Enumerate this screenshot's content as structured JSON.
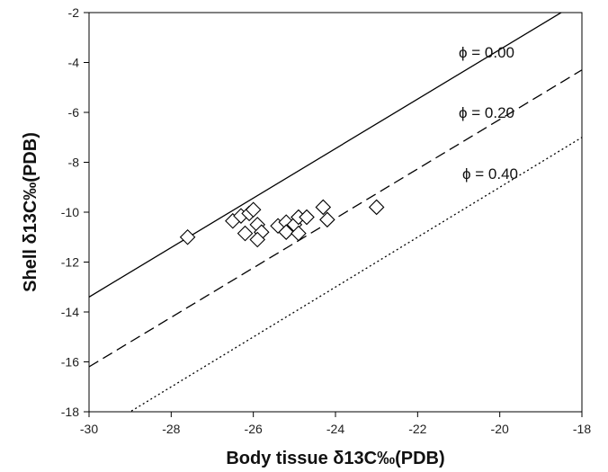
{
  "chart_data": {
    "type": "scatter",
    "title": "",
    "xlabel": "Body tissue δ13C‰(PDB)",
    "ylabel": "Shell δ13C‰(PDB)",
    "xlim": [
      -30,
      -18
    ],
    "ylim": [
      -18,
      -2
    ],
    "xticks": [
      -30,
      -28,
      -26,
      -24,
      -22,
      -20,
      -18
    ],
    "yticks": [
      -18,
      -16,
      -14,
      -12,
      -10,
      -8,
      -6,
      -4,
      -2
    ],
    "xtick_labels": [
      "-30",
      "-28",
      "-26",
      "-24",
      "-22",
      "-20",
      "-18"
    ],
    "ytick_labels": [
      "-18",
      "-16",
      "-14",
      "-12",
      "-10",
      "-8",
      "-6",
      "-4",
      "-2"
    ],
    "grid": false,
    "points": {
      "marker": "diamond",
      "x": [
        -27.6,
        -26.5,
        -26.3,
        -26.1,
        -26.0,
        -25.9,
        -25.8,
        -26.2,
        -25.9,
        -25.4,
        -25.2,
        -25.2,
        -25.0,
        -24.9,
        -24.9,
        -24.7,
        -24.3,
        -24.2,
        -23.0
      ],
      "y": [
        -11.0,
        -10.35,
        -10.15,
        -10.05,
        -9.9,
        -10.5,
        -10.8,
        -10.85,
        -11.1,
        -10.55,
        -10.4,
        -10.8,
        -10.5,
        -10.2,
        -10.85,
        -10.2,
        -9.8,
        -10.3,
        -9.8
      ]
    },
    "lines": [
      {
        "label": "ϕ = 0.00",
        "style": "solid",
        "x": [
          -30,
          -18
        ],
        "y": [
          -13.4,
          -1.5
        ]
      },
      {
        "label": "ϕ = 0.20",
        "style": "dashed",
        "x": [
          -30,
          -18
        ],
        "y": [
          -16.2,
          -4.3
        ]
      },
      {
        "label": "ϕ = 0.40",
        "style": "dotted",
        "x": [
          -30,
          -18
        ],
        "y": [
          -19.0,
          -7.0
        ]
      }
    ]
  }
}
